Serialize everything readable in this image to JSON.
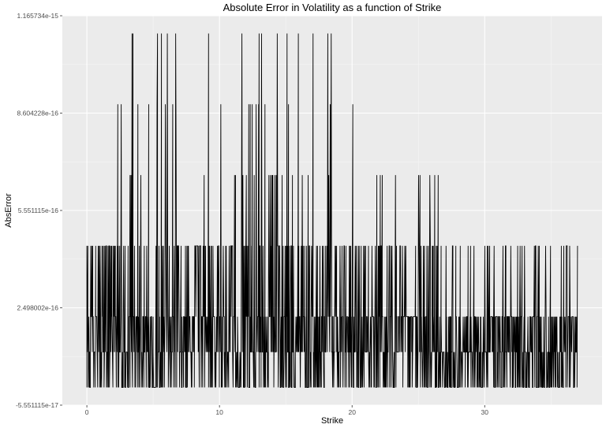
{
  "chart_data": {
    "type": "line",
    "title": "Absolute Error in Volatility as a function of Strike",
    "xlabel": "Strike",
    "ylabel": "AbsError",
    "xlim": [
      -1.85,
      38.85
    ],
    "ylim": [
      -5.551115e-17,
      1.165734e-15
    ],
    "x_ticks": [
      0,
      10,
      20,
      30
    ],
    "x_tick_labels": [
      "0",
      "10",
      "20",
      "30"
    ],
    "y_ticks": [
      -5.551115e-17,
      2.498002e-16,
      5.551115e-16,
      8.604228e-16,
      1.165734e-15
    ],
    "y_tick_labels": [
      "-5.551115e-17",
      "2.498002e-16",
      "5.551115e-16",
      "8.604228e-16",
      "1.165734e-15"
    ],
    "y_levels": [
      0,
      1.110223e-16,
      2.220446e-16,
      4.440892e-16,
      6.661338e-16,
      8.881784e-16,
      1.110223e-15
    ],
    "x_range": [
      0,
      37
    ],
    "grid": true,
    "colors": {
      "panel": "#ebebeb",
      "grid": "#ffffff",
      "line": "#000000"
    }
  }
}
